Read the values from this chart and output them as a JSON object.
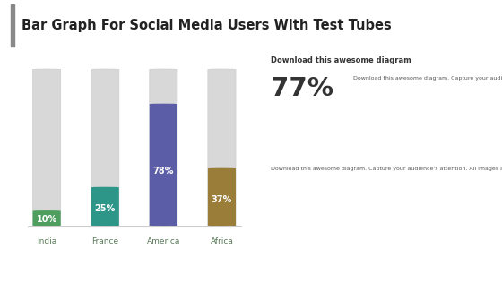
{
  "title": "Bar Graph For Social Media Users With Test Tubes",
  "background_color": "#ffffff",
  "header_bg_color": "#efefef",
  "accent_color": "#888888",
  "categories": [
    "India",
    "France",
    "America",
    "Africa"
  ],
  "values": [
    10,
    25,
    78,
    37
  ],
  "total": 100,
  "bar_colors": [
    "#4e9e5f",
    "#2d9688",
    "#5b5ea6",
    "#9b7d3a"
  ],
  "empty_color": "#d8d8d8",
  "value_labels": [
    "10%",
    "25%",
    "78%",
    "37%"
  ],
  "cat_label_color": "#5a7a5a",
  "sidebar_heading": "Download this awesome diagram",
  "sidebar_large_text": "77%",
  "sidebar_body1": "Download this awesome diagram. Capture your audience's attention. All images are 100% editable in PowerPoint. Bring your presentation to life. Pitch your ideas convincingly. Download this awesome diagram. Capture your audience's attention.",
  "sidebar_body2": "Download this awesome diagram. Capture your audience's attention. All images are 100% editable in PowerPoint. Bring your presentation to life. Pitch your ideas convincingly. Download this awesome diagram. Capture your audience's attention. Download this awesome diagram. Capture your audience's attention. All images are 100% editable in PowerPoint. Bring your presentation to life. Pitch your ideas convincingly. Download this awesome diagram. Capture your audience's attention.",
  "figsize": [
    5.6,
    3.15
  ],
  "dpi": 100
}
